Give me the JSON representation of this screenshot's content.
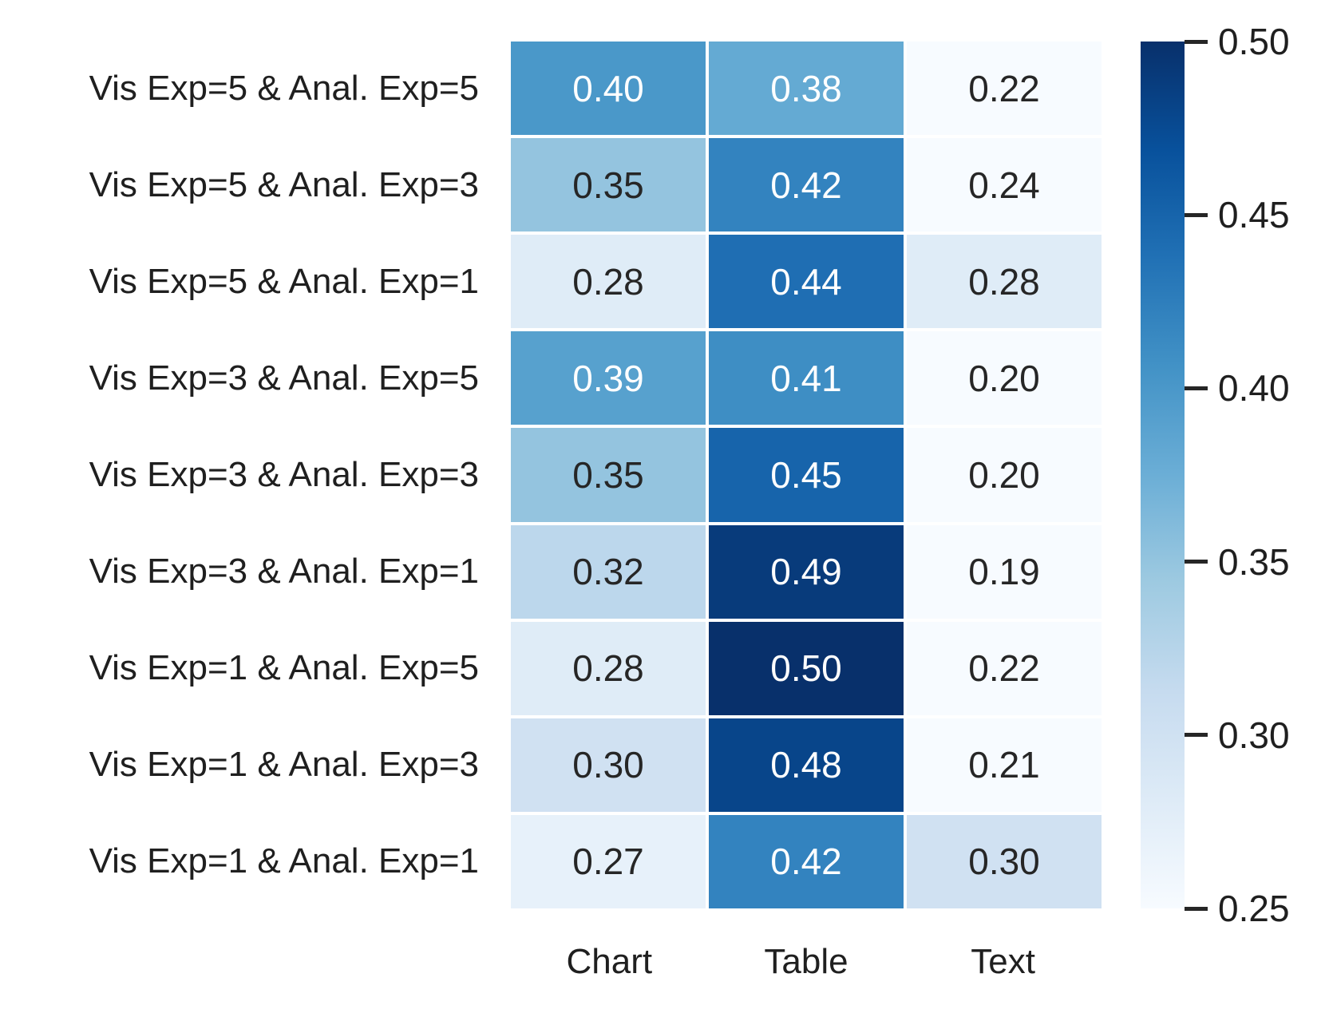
{
  "chart_data": {
    "type": "heatmap",
    "title": "",
    "xlabel": "",
    "ylabel": "",
    "rows": [
      "Vis Exp=5 & Anal. Exp=5",
      "Vis Exp=5 & Anal. Exp=3",
      "Vis Exp=5 & Anal. Exp=1",
      "Vis Exp=3 & Anal. Exp=5",
      "Vis Exp=3 & Anal. Exp=3",
      "Vis Exp=3 & Anal. Exp=1",
      "Vis Exp=1 & Anal. Exp=5",
      "Vis Exp=1 & Anal. Exp=3",
      "Vis Exp=1 & Anal. Exp=1"
    ],
    "columns": [
      "Chart",
      "Table",
      "Text"
    ],
    "cells": [
      [
        "0.40",
        "0.38",
        "0.22"
      ],
      [
        "0.35",
        "0.42",
        "0.24"
      ],
      [
        "0.28",
        "0.44",
        "0.28"
      ],
      [
        "0.39",
        "0.41",
        "0.20"
      ],
      [
        "0.35",
        "0.45",
        "0.20"
      ],
      [
        "0.32",
        "0.49",
        "0.19"
      ],
      [
        "0.28",
        "0.50",
        "0.22"
      ],
      [
        "0.30",
        "0.48",
        "0.21"
      ],
      [
        "0.27",
        "0.42",
        "0.30"
      ]
    ],
    "colormap": {
      "name": "Blues",
      "vmin": 0.25,
      "vmax": 0.5,
      "stops": [
        "#f7fbff",
        "#deebf7",
        "#c6dbef",
        "#9ecae1",
        "#6baed6",
        "#4292c6",
        "#2171b5",
        "#08519c",
        "#08306b"
      ]
    },
    "colorbar": {
      "ticks": [
        "0.50",
        "0.45",
        "0.40",
        "0.35",
        "0.30",
        "0.25"
      ]
    },
    "annotation_colors": {
      "dark_text": "#262626",
      "light_text": "#ffffff"
    },
    "legend_position": "right-colorbar",
    "grid": false
  }
}
